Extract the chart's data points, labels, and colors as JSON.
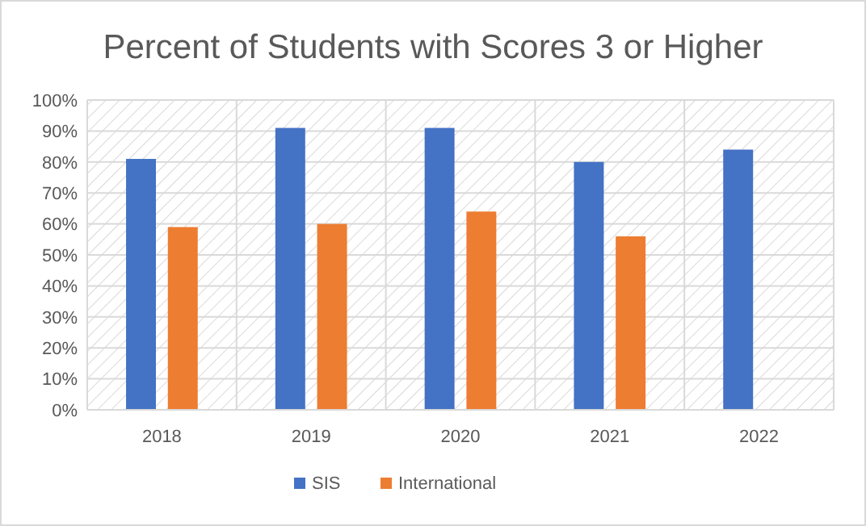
{
  "chart_data": {
    "type": "bar",
    "title": "Percent of Students with Scores 3 or Higher",
    "categories": [
      "2018",
      "2019",
      "2020",
      "2021",
      "2022"
    ],
    "series": [
      {
        "name": "SIS",
        "color": "#4472c4",
        "values": [
          81,
          91,
          91,
          80,
          84
        ]
      },
      {
        "name": "International",
        "color": "#ed7d31",
        "values": [
          59,
          60,
          64,
          56,
          null
        ]
      }
    ],
    "ylim": [
      0,
      100
    ],
    "yticks": [
      {
        "value": 0,
        "label": "0%"
      },
      {
        "value": 10,
        "label": "10%"
      },
      {
        "value": 20,
        "label": "20%"
      },
      {
        "value": 30,
        "label": "30%"
      },
      {
        "value": 40,
        "label": "40%"
      },
      {
        "value": 50,
        "label": "50%"
      },
      {
        "value": 60,
        "label": "60%"
      },
      {
        "value": 70,
        "label": "70%"
      },
      {
        "value": 80,
        "label": "80%"
      },
      {
        "value": 90,
        "label": "90%"
      },
      {
        "value": 100,
        "label": "100%"
      }
    ],
    "grid": true,
    "legend": "bottom"
  }
}
